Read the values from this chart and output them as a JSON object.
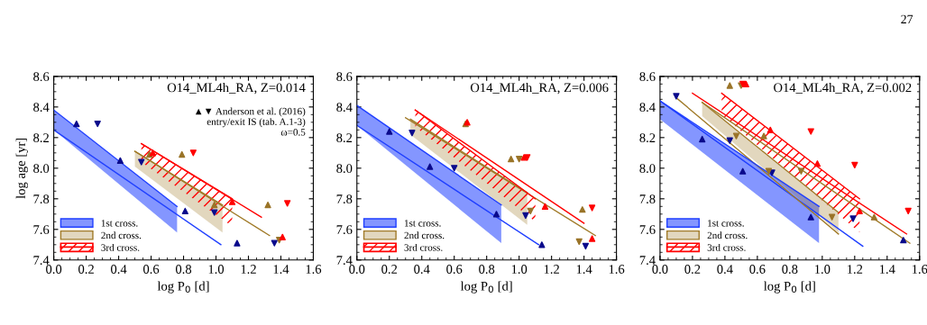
{
  "chart_data": [
    {
      "type": "scatter",
      "title": "O14_ML4h_RA, Z=0.014",
      "xlabel": "log P$_{0}$ [d]",
      "ylabel": "log age [yr]",
      "xlim": [
        0.0,
        1.6
      ],
      "xticks": [
        {
          "value": 0,
          "label": "0.0"
        },
        {
          "value": 0.2,
          "label": "0.2"
        },
        {
          "value": 0.4,
          "label": "0.4"
        },
        {
          "value": 0.6,
          "label": "0.6"
        },
        {
          "value": 0.8,
          "label": "0.8"
        },
        {
          "value": 1,
          "label": "1.0"
        },
        {
          "value": 1.2,
          "label": "1.2"
        },
        {
          "value": 1.4,
          "label": "1.4"
        },
        {
          "value": 1.6,
          "label": "1.6"
        }
      ],
      "ylim": [
        7.4,
        8.6
      ],
      "yticks": [
        {
          "value": 7.4,
          "label": "7.4"
        },
        {
          "value": 7.6,
          "label": "7.6"
        },
        {
          "value": 7.8,
          "label": "7.8"
        },
        {
          "value": 8,
          "label": "8.0"
        },
        {
          "value": 8.2,
          "label": "8.2"
        },
        {
          "value": 8.4,
          "label": "8.4"
        },
        {
          "value": 8.6,
          "label": "8.6"
        }
      ],
      "grid": false,
      "legend": "bottom left",
      "annotations": [
        "▲▼ Anderson et al. (2016)\nentry/exit IS (tab. A.1-3)\nω=0.5"
      ],
      "series": [
        {
          "type": "line",
          "name": "1st cross.",
          "color": "#1f3fff",
          "x": [
            0.0,
            0.76
          ],
          "values": [
            8.38,
            7.75
          ],
          "lower": [
            8.25,
            7.58
          ],
          "upper": [
            8.38,
            7.75
          ]
        },
        {
          "type": "line",
          "name": "2nd cross.",
          "color": "#a07a28",
          "x": [
            0.5,
            1.04
          ],
          "values": [
            8.11,
            7.76
          ],
          "lower": [
            8.01,
            7.58
          ],
          "upper": [
            8.11,
            7.76
          ]
        },
        {
          "type": "line",
          "name": "3rd cross.",
          "color": "#ff0000",
          "x": [
            0.54,
            1.1
          ],
          "values": [
            8.16,
            7.8
          ],
          "lower": [
            8.04,
            7.62
          ],
          "upper": [
            8.16,
            7.8
          ]
        },
        {
          "type": "line",
          "color": "#1f3fff",
          "x": [
            0.0,
            1.03
          ],
          "values": [
            8.25,
            7.5
          ]
        },
        {
          "type": "line",
          "color": "#a07a28",
          "x": [
            0.5,
            1.33
          ],
          "values": [
            8.11,
            7.56
          ]
        },
        {
          "type": "line",
          "color": "#ff0000",
          "x": [
            0.54,
            1.28
          ],
          "values": [
            8.16,
            7.68
          ]
        },
        {
          "type": "scatter",
          "marker": "triangle",
          "color": "#0a0a8c",
          "x": [
            0.14,
            0.41,
            0.81,
            1.13
          ],
          "values": [
            8.29,
            8.05,
            7.72,
            7.51
          ]
        },
        {
          "type": "scatter",
          "marker": "triangle_down",
          "color": "#0a0a8c",
          "x": [
            0.27,
            0.54,
            0.99,
            1.36
          ],
          "values": [
            8.29,
            8.04,
            7.71,
            7.51
          ]
        },
        {
          "type": "scatter",
          "marker": "triangle",
          "color": "#9a7428",
          "x": [
            0.59,
            0.79,
            0.99,
            1.32
          ],
          "values": [
            8.09,
            8.09,
            7.76,
            7.76
          ]
        },
        {
          "type": "scatter",
          "marker": "triangle_down",
          "color": "#9a7428",
          "x": [
            1.39
          ],
          "values": [
            7.53
          ]
        },
        {
          "type": "scatter",
          "marker": "triangle",
          "color": "#ff0000",
          "x": [
            0.61,
            1.1,
            1.41
          ],
          "values": [
            8.1,
            7.78,
            7.55
          ]
        },
        {
          "type": "scatter",
          "marker": "triangle_down",
          "color": "#ff0000",
          "x": [
            0.86,
            1.44
          ],
          "values": [
            8.1,
            7.77
          ]
        }
      ]
    },
    {
      "type": "scatter",
      "title": "O14_ML4h_RA, Z=0.006",
      "xlabel": "log P$_{0}$ [d]",
      "xlim": [
        0.0,
        1.6
      ],
      "xticks": [
        {
          "value": 0,
          "label": "0.0"
        },
        {
          "value": 0.2,
          "label": "0.2"
        },
        {
          "value": 0.4,
          "label": "0.4"
        },
        {
          "value": 0.6,
          "label": "0.6"
        },
        {
          "value": 0.8,
          "label": "0.8"
        },
        {
          "value": 1,
          "label": "1.0"
        },
        {
          "value": 1.2,
          "label": "1.2"
        },
        {
          "value": 1.4,
          "label": "1.4"
        },
        {
          "value": 1.6,
          "label": "1.6"
        }
      ],
      "ylim": [
        7.4,
        8.6
      ],
      "yticks": [
        {
          "value": 7.4,
          "label": "7.4"
        },
        {
          "value": 7.6,
          "label": "7.6"
        },
        {
          "value": 7.8,
          "label": "7.8"
        },
        {
          "value": 8,
          "label": "8.0"
        },
        {
          "value": 8.2,
          "label": "8.2"
        },
        {
          "value": 8.4,
          "label": "8.4"
        },
        {
          "value": 8.6,
          "label": "8.6"
        }
      ],
      "grid": false,
      "legend": "bottom left",
      "series": [
        {
          "type": "line",
          "name": "1st cross.",
          "color": "#1f3fff",
          "x": [
            0.0,
            0.89
          ],
          "values": [
            8.41,
            7.76
          ],
          "lower": [
            8.28,
            7.51
          ],
          "upper": [
            8.41,
            7.76
          ]
        },
        {
          "type": "line",
          "name": "2nd cross.",
          "color": "#a07a28",
          "x": [
            0.33,
            1.05
          ],
          "values": [
            8.32,
            7.84
          ],
          "lower": [
            8.22,
            7.63
          ],
          "upper": [
            8.32,
            7.84
          ]
        },
        {
          "type": "line",
          "name": "3rd cross.",
          "color": "#ff0000",
          "x": [
            0.36,
            1.1
          ],
          "values": [
            8.38,
            7.8
          ],
          "lower": [
            8.27,
            7.65
          ],
          "upper": [
            8.38,
            7.8
          ]
        },
        {
          "type": "line",
          "color": "#1f3fff",
          "x": [
            0.0,
            1.12
          ],
          "values": [
            8.28,
            7.5
          ]
        },
        {
          "type": "line",
          "color": "#a07a28",
          "x": [
            0.3,
            1.47
          ],
          "values": [
            8.33,
            7.56
          ]
        },
        {
          "type": "line",
          "color": "#ff0000",
          "x": [
            0.36,
            1.4
          ],
          "values": [
            8.38,
            7.64
          ]
        },
        {
          "type": "scatter",
          "marker": "triangle",
          "color": "#0a0a8c",
          "x": [
            0.2,
            0.45,
            0.86,
            1.14
          ],
          "values": [
            8.24,
            8.01,
            7.7,
            7.5
          ]
        },
        {
          "type": "scatter",
          "marker": "triangle_down",
          "color": "#0a0a8c",
          "x": [
            0.34,
            0.6,
            1.04,
            1.41
          ],
          "values": [
            8.23,
            8.0,
            7.69,
            7.49
          ]
        },
        {
          "type": "scatter",
          "marker": "triangle",
          "color": "#9a7428",
          "x": [
            0.67,
            0.95,
            1.39
          ],
          "values": [
            8.29,
            8.06,
            7.73
          ]
        },
        {
          "type": "scatter",
          "marker": "triangle_down",
          "color": "#9a7428",
          "x": [
            1.0,
            1.07,
            1.37
          ],
          "values": [
            8.06,
            7.72,
            7.52
          ]
        },
        {
          "type": "scatter",
          "marker": "triangle",
          "color": "#ff0000",
          "x": [
            0.68,
            1.03,
            1.16,
            1.45
          ],
          "values": [
            8.3,
            8.07,
            7.75,
            7.54
          ]
        },
        {
          "type": "scatter",
          "marker": "triangle_down",
          "color": "#ff0000",
          "x": [
            1.05,
            1.45
          ],
          "values": [
            8.07,
            7.74
          ]
        }
      ]
    },
    {
      "type": "scatter",
      "title": "O14_ML4h_RA, Z=0.002",
      "xlabel": "log P$_{0}$ [d]",
      "xlim": [
        0.0,
        1.6
      ],
      "xticks": [
        {
          "value": 0,
          "label": "0.0"
        },
        {
          "value": 0.2,
          "label": "0.2"
        },
        {
          "value": 0.4,
          "label": "0.4"
        },
        {
          "value": 0.6,
          "label": "0.6"
        },
        {
          "value": 0.8,
          "label": "0.8"
        },
        {
          "value": 1,
          "label": "1.0"
        },
        {
          "value": 1.2,
          "label": "1.2"
        },
        {
          "value": 1.4,
          "label": "1.4"
        },
        {
          "value": 1.6,
          "label": "1.6"
        }
      ],
      "ylim": [
        7.4,
        8.6
      ],
      "yticks": [
        {
          "value": 7.4,
          "label": "7.4"
        },
        {
          "value": 7.6,
          "label": "7.6"
        },
        {
          "value": 7.8,
          "label": "7.8"
        },
        {
          "value": 8,
          "label": "8.0"
        },
        {
          "value": 8.2,
          "label": "8.2"
        },
        {
          "value": 8.4,
          "label": "8.4"
        },
        {
          "value": 8.6,
          "label": "8.6"
        }
      ],
      "grid": false,
      "legend": "bottom left",
      "annotations": [
        "27"
      ],
      "series": [
        {
          "type": "line",
          "name": "1st cross.",
          "color": "#1f3fff",
          "x": [
            0.0,
            0.98
          ],
          "values": [
            8.44,
            7.75
          ],
          "lower": [
            8.32,
            7.51
          ],
          "upper": [
            8.44,
            7.75
          ]
        },
        {
          "type": "line",
          "name": "2nd cross.",
          "color": "#a07a28",
          "x": [
            0.26,
            1.1
          ],
          "values": [
            8.43,
            7.71
          ],
          "lower": [
            8.34,
            7.58
          ],
          "upper": [
            8.43,
            7.71
          ]
        },
        {
          "type": "line",
          "name": "3rd cross.",
          "color": "#ff0000",
          "x": [
            0.38,
            1.23
          ],
          "values": [
            8.49,
            7.8
          ],
          "lower": [
            8.35,
            7.58
          ],
          "upper": [
            8.49,
            7.8
          ]
        },
        {
          "type": "line",
          "color": "#1f3fff",
          "x": [
            0.0,
            1.25
          ],
          "values": [
            8.44,
            7.49
          ]
        },
        {
          "type": "line",
          "color": "#a07a28",
          "x": [
            0.1,
            1.1
          ],
          "values": [
            8.46,
            7.57
          ]
        },
        {
          "type": "line",
          "color": "#a07a28",
          "x": [
            0.26,
            1.54
          ],
          "values": [
            8.43,
            7.51
          ]
        },
        {
          "type": "line",
          "color": "#ff0000",
          "x": [
            0.2,
            1.52
          ],
          "values": [
            8.49,
            7.57
          ]
        },
        {
          "type": "scatter",
          "marker": "triangle",
          "color": "#0a0a8c",
          "x": [
            0.26,
            0.51,
            0.93,
            1.5
          ],
          "values": [
            8.19,
            7.98,
            7.68,
            7.53
          ]
        },
        {
          "type": "scatter",
          "marker": "triangle_down",
          "color": "#0a0a8c",
          "x": [
            0.1,
            0.43,
            0.69,
            1.19
          ],
          "values": [
            8.47,
            8.18,
            7.97,
            7.67
          ]
        },
        {
          "type": "scatter",
          "marker": "triangle",
          "color": "#9a7428",
          "x": [
            0.43,
            0.64,
            1.32
          ],
          "values": [
            8.54,
            8.21,
            7.68
          ]
        },
        {
          "type": "scatter",
          "marker": "triangle_down",
          "color": "#9a7428",
          "x": [
            0.5,
            0.47,
            0.67,
            0.87,
            1.06
          ],
          "values": [
            8.54,
            8.21,
            7.98,
            7.98,
            7.68
          ]
        },
        {
          "type": "scatter",
          "marker": "triangle",
          "color": "#ff0000",
          "x": [
            0.53,
            0.68,
            0.97,
            1.23
          ],
          "values": [
            8.55,
            8.25,
            8.03,
            7.72
          ]
        },
        {
          "type": "scatter",
          "marker": "triangle_down",
          "color": "#ff0000",
          "x": [
            0.51,
            0.93,
            1.2,
            1.53
          ],
          "values": [
            8.55,
            8.24,
            8.02,
            7.72
          ]
        }
      ]
    }
  ]
}
